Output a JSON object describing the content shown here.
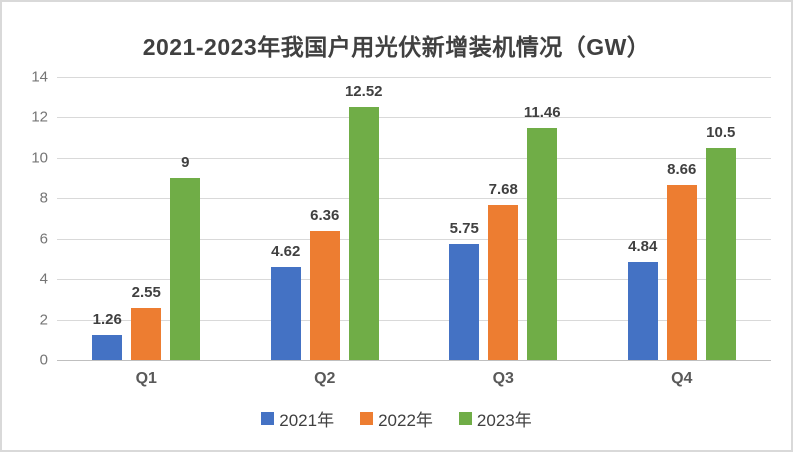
{
  "chart_data": {
    "type": "bar",
    "title": "2021-2023年我国户用光伏新增装机情况（GW）",
    "categories": [
      "Q1",
      "Q2",
      "Q3",
      "Q4"
    ],
    "series": [
      {
        "name": "2021年",
        "color": "#4472C4",
        "values": [
          1.26,
          4.62,
          5.75,
          4.84
        ]
      },
      {
        "name": "2022年",
        "color": "#ED7D31",
        "values": [
          2.55,
          6.36,
          7.68,
          8.66
        ]
      },
      {
        "name": "2023年",
        "color": "#70AD47",
        "values": [
          9,
          12.52,
          11.46,
          10.5
        ]
      }
    ],
    "xlabel": "",
    "ylabel": "",
    "ylim": [
      0,
      14
    ],
    "yticks": [
      0,
      2,
      4,
      6,
      8,
      10,
      12,
      14
    ],
    "grid": true,
    "legend_position": "bottom",
    "data_labels": true
  },
  "colors": {
    "panel_border": "#d9d9d9",
    "gridline": "#d9d9d9",
    "axis_line": "#bfbfbf",
    "title_text": "#404040",
    "data_label_text": "#404040",
    "tick_text": "#757575",
    "category_text": "#595959"
  }
}
